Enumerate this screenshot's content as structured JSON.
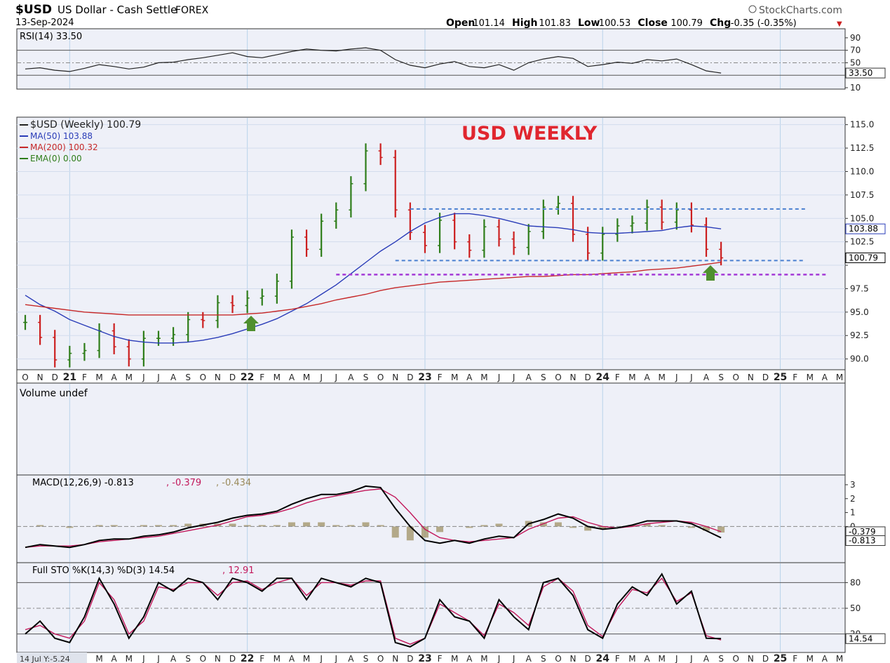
{
  "header": {
    "symbol": "$USD",
    "name": "US Dollar - Cash Settle",
    "market": "FOREX",
    "date": "13-Sep-2024",
    "brand": "StockCharts.com",
    "ohlc": [
      {
        "label": "Open",
        "value": "101.14"
      },
      {
        "label": "High",
        "value": "101.83"
      },
      {
        "label": "Low",
        "value": "100.53"
      },
      {
        "label": "Close",
        "value": "100.79"
      },
      {
        "label": "Chg",
        "value": "-0.35 (-0.35%)"
      }
    ]
  },
  "colors": {
    "panel_bg": "#eef0f8",
    "up_bar": "#2e7d1a",
    "down_bar": "#cc1f1f",
    "ma50": "#2a3cb8",
    "ma200": "#c62828",
    "resistance_line": "#4a7fd0",
    "support_line": "#a43ad6",
    "arrow": "#4f8f2f",
    "annotation": "#e0262f",
    "grid": "#b9d3ea"
  },
  "chart_data": [
    {
      "panel": "rsi",
      "type": "line",
      "title": "RSI(14) 33.50",
      "ylim": [
        10,
        100
      ],
      "ticks": [
        90,
        70,
        50,
        30,
        10
      ],
      "last_value": "33.50",
      "x": [
        "2020-10",
        "2020-11",
        "2020-12",
        "2021-01",
        "2021-02",
        "2021-03",
        "2021-04",
        "2021-05",
        "2021-06",
        "2021-07",
        "2021-08",
        "2021-09",
        "2021-10",
        "2021-11",
        "2021-12",
        "2022-01",
        "2022-02",
        "2022-03",
        "2022-04",
        "2022-05",
        "2022-06",
        "2022-07",
        "2022-08",
        "2022-09",
        "2022-10",
        "2022-11",
        "2022-12",
        "2023-01",
        "2023-02",
        "2023-03",
        "2023-04",
        "2023-05",
        "2023-06",
        "2023-07",
        "2023-08",
        "2023-09",
        "2023-10",
        "2023-11",
        "2023-12",
        "2024-01",
        "2024-02",
        "2024-03",
        "2024-04",
        "2024-05",
        "2024-06",
        "2024-07",
        "2024-08",
        "2024-09"
      ],
      "values": [
        40,
        42,
        38,
        36,
        41,
        47,
        44,
        40,
        43,
        50,
        51,
        55,
        58,
        62,
        66,
        60,
        58,
        63,
        68,
        72,
        70,
        69,
        72,
        74,
        70,
        55,
        46,
        42,
        48,
        52,
        44,
        42,
        47,
        38,
        50,
        56,
        60,
        57,
        44,
        47,
        51,
        49,
        55,
        53,
        56,
        47,
        37,
        33.5
      ]
    },
    {
      "panel": "price",
      "type": "line",
      "annotation": "USD WEEKLY",
      "legend": [
        {
          "label": "$USD (Weekly) 100.79"
        },
        {
          "label": "MA(50) 103.88"
        },
        {
          "label": "MA(200) 100.32"
        },
        {
          "label": "EMA(0) 0.00"
        }
      ],
      "ylim": [
        89,
        115.5
      ],
      "ticks": [
        115,
        112.5,
        110,
        107.5,
        105,
        102.5,
        100,
        97.5,
        95,
        92.5,
        90
      ],
      "tick_labels": [
        "115.0",
        "112.5",
        "110.0",
        "107.5",
        "105.0",
        "102.5",
        "",
        "97.5",
        "95.0",
        "92.5",
        "90.0"
      ],
      "x_axis": [
        "O",
        "N",
        "D",
        "21",
        "F",
        "M",
        "A",
        "M",
        "J",
        "J",
        "A",
        "S",
        "O",
        "N",
        "D",
        "22",
        "F",
        "M",
        "A",
        "M",
        "J",
        "J",
        "A",
        "S",
        "O",
        "N",
        "D",
        "23",
        "F",
        "M",
        "A",
        "M",
        "J",
        "J",
        "A",
        "S",
        "O",
        "N",
        "D",
        "24",
        "F",
        "M",
        "A",
        "M",
        "J",
        "J",
        "A",
        "S",
        "O",
        "N",
        "D",
        "25",
        "F",
        "M",
        "A",
        "M"
      ],
      "x": [
        "2020-10",
        "2020-11",
        "2020-12",
        "2021-01",
        "2021-02",
        "2021-03",
        "2021-04",
        "2021-05",
        "2021-06",
        "2021-07",
        "2021-08",
        "2021-09",
        "2021-10",
        "2021-11",
        "2021-12",
        "2022-01",
        "2022-02",
        "2022-03",
        "2022-04",
        "2022-05",
        "2022-06",
        "2022-07",
        "2022-08",
        "2022-09",
        "2022-10",
        "2022-11",
        "2022-12",
        "2023-01",
        "2023-02",
        "2023-03",
        "2023-04",
        "2023-05",
        "2023-06",
        "2023-07",
        "2023-08",
        "2023-09",
        "2023-10",
        "2023-11",
        "2023-12",
        "2024-01",
        "2024-02",
        "2024-03",
        "2024-04",
        "2024-05",
        "2024-06",
        "2024-07",
        "2024-08",
        "2024-09"
      ],
      "series": [
        {
          "name": "$USD (Weekly)",
          "values": [
            93.9,
            92.3,
            89.9,
            90.6,
            90.9,
            93.0,
            91.3,
            90.0,
            92.2,
            92.2,
            92.6,
            94.2,
            94.1,
            96.0,
            95.7,
            96.5,
            96.7,
            98.3,
            103.0,
            101.7,
            104.7,
            105.9,
            108.7,
            112.2,
            111.5,
            105.9,
            103.5,
            102.1,
            104.8,
            102.5,
            101.6,
            104.1,
            102.8,
            101.9,
            103.6,
            106.2,
            106.6,
            103.3,
            101.3,
            103.3,
            104.2,
            104.5,
            106.2,
            104.6,
            105.9,
            104.3,
            101.7,
            100.79
          ]
        },
        {
          "name": "MA(50)",
          "values": [
            96.8,
            95.8,
            95.1,
            94.2,
            93.6,
            93.0,
            92.4,
            92.0,
            91.8,
            91.7,
            91.7,
            91.8,
            92.0,
            92.3,
            92.7,
            93.2,
            93.7,
            94.3,
            95.1,
            95.9,
            96.9,
            97.9,
            99.1,
            100.3,
            101.5,
            102.5,
            103.6,
            104.5,
            105.1,
            105.5,
            105.5,
            105.3,
            105.0,
            104.6,
            104.2,
            104.1,
            104.0,
            103.8,
            103.5,
            103.4,
            103.4,
            103.5,
            103.6,
            103.7,
            104.0,
            104.2,
            104.1,
            103.88
          ]
        },
        {
          "name": "MA(200)",
          "values": [
            95.8,
            95.6,
            95.4,
            95.2,
            95.0,
            94.9,
            94.8,
            94.7,
            94.7,
            94.7,
            94.7,
            94.7,
            94.7,
            94.7,
            94.7,
            94.8,
            94.9,
            95.1,
            95.3,
            95.6,
            95.9,
            96.3,
            96.6,
            96.9,
            97.3,
            97.6,
            97.8,
            98.0,
            98.2,
            98.3,
            98.4,
            98.5,
            98.6,
            98.7,
            98.8,
            98.8,
            98.9,
            99.0,
            99.0,
            99.1,
            99.2,
            99.3,
            99.5,
            99.6,
            99.7,
            99.9,
            100.1,
            100.32
          ]
        }
      ],
      "last_labels": [
        "103.88",
        "100.79"
      ],
      "levels": [
        {
          "name": "resistance",
          "value": 106.0
        },
        {
          "name": "support",
          "value": 100.5
        },
        {
          "name": "lower-support",
          "value": 99.0
        }
      ]
    },
    {
      "panel": "volume",
      "type": "bar",
      "title": "Volume undef"
    },
    {
      "panel": "macd",
      "type": "line",
      "title_parts": [
        "MACD(12,26,9) -0.813",
        ", -0.379",
        ", -0.434"
      ],
      "ylim": [
        -2.5,
        3.5
      ],
      "ticks": [
        3,
        2,
        1,
        0
      ],
      "last_labels": [
        "-0.379",
        "-0.813"
      ],
      "x": [
        "2020-10",
        "2020-11",
        "2020-12",
        "2021-01",
        "2021-02",
        "2021-03",
        "2021-04",
        "2021-05",
        "2021-06",
        "2021-07",
        "2021-08",
        "2021-09",
        "2021-10",
        "2021-11",
        "2021-12",
        "2022-01",
        "2022-02",
        "2022-03",
        "2022-04",
        "2022-05",
        "2022-06",
        "2022-07",
        "2022-08",
        "2022-09",
        "2022-10",
        "2022-11",
        "2022-12",
        "2023-01",
        "2023-02",
        "2023-03",
        "2023-04",
        "2023-05",
        "2023-06",
        "2023-07",
        "2023-08",
        "2023-09",
        "2023-10",
        "2023-11",
        "2023-12",
        "2024-01",
        "2024-02",
        "2024-03",
        "2024-04",
        "2024-05",
        "2024-06",
        "2024-07",
        "2024-08",
        "2024-09"
      ],
      "series": [
        {
          "name": "MACD",
          "values": [
            -1.5,
            -1.3,
            -1.4,
            -1.5,
            -1.3,
            -1.0,
            -0.9,
            -0.9,
            -0.7,
            -0.6,
            -0.4,
            -0.1,
            0.1,
            0.3,
            0.6,
            0.8,
            0.9,
            1.1,
            1.6,
            2.0,
            2.3,
            2.3,
            2.5,
            2.9,
            2.8,
            1.3,
            0.0,
            -1.0,
            -1.2,
            -1.0,
            -1.2,
            -0.9,
            -0.7,
            -0.8,
            0.2,
            0.5,
            0.9,
            0.6,
            0.0,
            -0.2,
            -0.1,
            0.1,
            0.4,
            0.4,
            0.4,
            0.2,
            -0.3,
            -0.813
          ]
        },
        {
          "name": "Signal",
          "values": [
            -1.5,
            -1.4,
            -1.4,
            -1.4,
            -1.3,
            -1.1,
            -1.0,
            -0.9,
            -0.8,
            -0.7,
            -0.5,
            -0.3,
            -0.1,
            0.1,
            0.4,
            0.7,
            0.8,
            1.0,
            1.3,
            1.7,
            2.0,
            2.2,
            2.4,
            2.6,
            2.7,
            2.1,
            1.0,
            -0.2,
            -0.8,
            -1.0,
            -1.1,
            -1.0,
            -0.9,
            -0.8,
            -0.2,
            0.2,
            0.6,
            0.7,
            0.3,
            0.0,
            -0.1,
            0.0,
            0.2,
            0.3,
            0.4,
            0.3,
            0.0,
            -0.379
          ]
        }
      ],
      "histogram_color": "#9a8a5a"
    },
    {
      "panel": "stochastic",
      "type": "line",
      "title_parts": [
        "Full STO %K(14,3) %D(3) 14.54",
        ", 12.91"
      ],
      "ylim": [
        0,
        100
      ],
      "ticks": [
        80,
        50,
        20
      ],
      "last_label": "14.54",
      "x": [
        "2020-10",
        "2020-11",
        "2020-12",
        "2021-01",
        "2021-02",
        "2021-03",
        "2021-04",
        "2021-05",
        "2021-06",
        "2021-07",
        "2021-08",
        "2021-09",
        "2021-10",
        "2021-11",
        "2021-12",
        "2022-01",
        "2022-02",
        "2022-03",
        "2022-04",
        "2022-05",
        "2022-06",
        "2022-07",
        "2022-08",
        "2022-09",
        "2022-10",
        "2022-11",
        "2022-12",
        "2023-01",
        "2023-02",
        "2023-03",
        "2023-04",
        "2023-05",
        "2023-06",
        "2023-07",
        "2023-08",
        "2023-09",
        "2023-10",
        "2023-11",
        "2023-12",
        "2024-01",
        "2024-02",
        "2024-03",
        "2024-04",
        "2024-05",
        "2024-06",
        "2024-07",
        "2024-08",
        "2024-09"
      ],
      "series": [
        {
          "name": "%K",
          "values": [
            20,
            35,
            15,
            10,
            40,
            85,
            55,
            15,
            40,
            80,
            70,
            85,
            80,
            60,
            85,
            80,
            70,
            85,
            85,
            60,
            85,
            80,
            75,
            85,
            80,
            10,
            5,
            15,
            60,
            40,
            35,
            15,
            60,
            40,
            25,
            80,
            85,
            65,
            25,
            15,
            55,
            75,
            65,
            90,
            55,
            70,
            15,
            14.54
          ]
        },
        {
          "name": "%D",
          "values": [
            25,
            30,
            20,
            15,
            35,
            80,
            60,
            20,
            35,
            75,
            72,
            80,
            80,
            65,
            80,
            82,
            72,
            80,
            85,
            65,
            80,
            80,
            77,
            82,
            82,
            15,
            8,
            15,
            55,
            45,
            35,
            18,
            55,
            45,
            30,
            75,
            85,
            70,
            30,
            17,
            50,
            72,
            68,
            85,
            58,
            68,
            18,
            12.91
          ]
        }
      ]
    }
  ],
  "footer": {
    "range_label": "14 Jul Y:-5.24"
  }
}
